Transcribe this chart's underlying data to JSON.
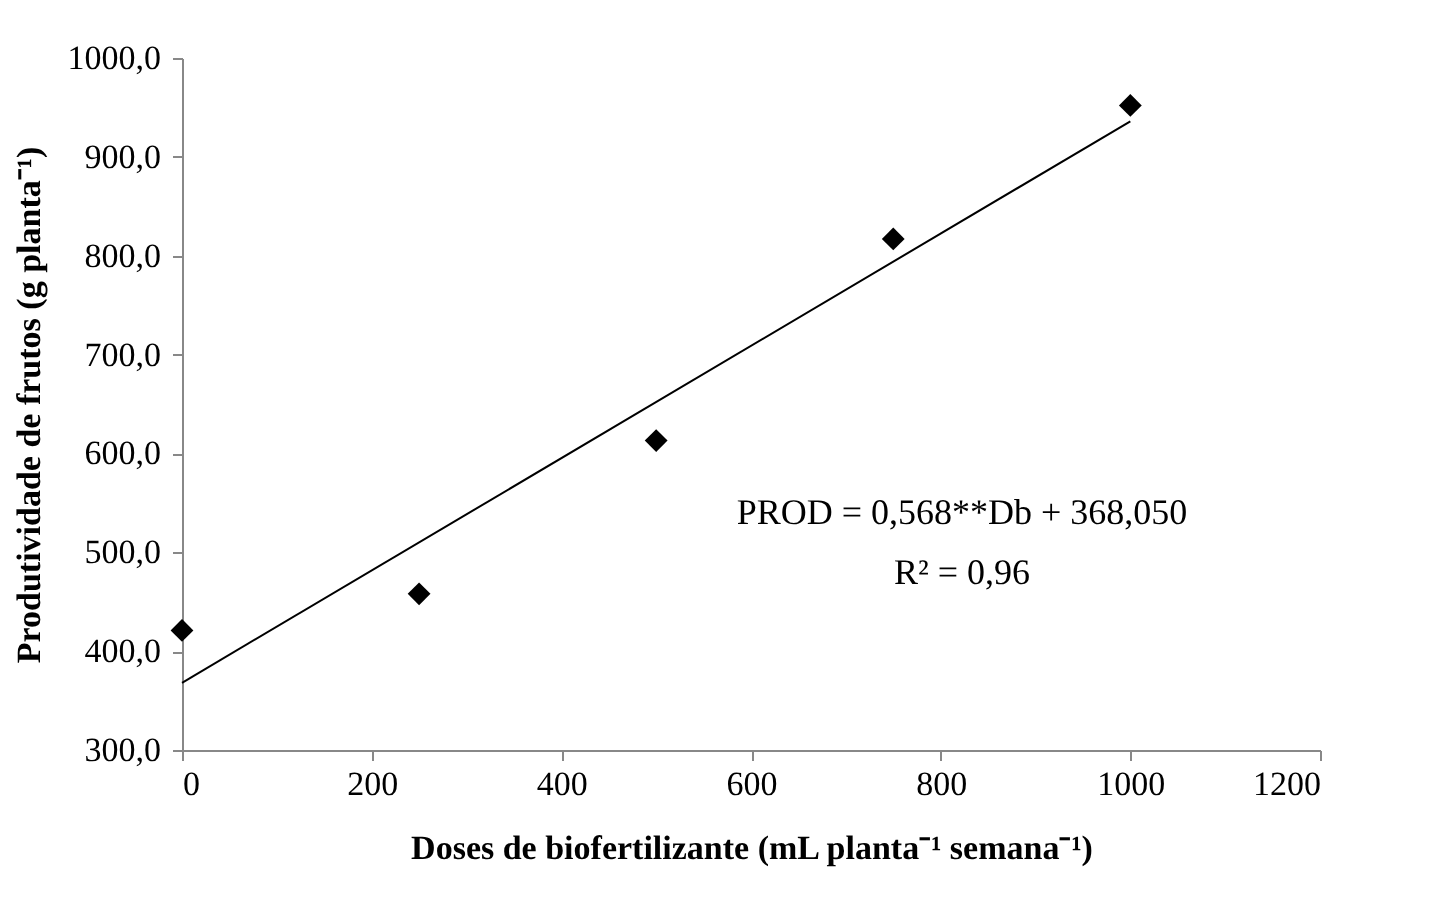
{
  "chart_data": {
    "type": "scatter",
    "xlabel": "Doses de biofertilizante (mL planta⁻¹ semana⁻¹)",
    "ylabel": "Produtividade de frutos (g planta⁻¹)",
    "x": [
      0,
      250,
      500,
      750,
      1000
    ],
    "series": [
      {
        "color": "#000000",
        "marker": "diamond",
        "values": [
          421,
          458,
          613,
          817,
          952
        ]
      },
      {
        "type": "line",
        "color": "#000000",
        "x": [
          0,
          1000
        ],
        "values": [
          368,
          936
        ],
        "line_style": "solid"
      }
    ],
    "xlim": [
      0,
      1200
    ],
    "xticks": [
      0,
      200,
      400,
      600,
      800,
      1000,
      1200
    ],
    "ylim": [
      300,
      1000
    ],
    "yticks": [
      {
        "value": 300,
        "label": "300,0"
      },
      {
        "value": 400,
        "label": "400,0"
      },
      {
        "value": 500,
        "label": "500,0"
      },
      {
        "value": 600,
        "label": "600,0"
      },
      {
        "value": 700,
        "label": "700,0"
      },
      {
        "value": 800,
        "label": "800,0"
      },
      {
        "value": 900,
        "label": "900,0"
      },
      {
        "value": 1000,
        "label": "1000,0"
      }
    ],
    "annotations": [
      "PROD = 0,568**Db + 368,050",
      "R² = 0,96"
    ],
    "grid": false
  }
}
